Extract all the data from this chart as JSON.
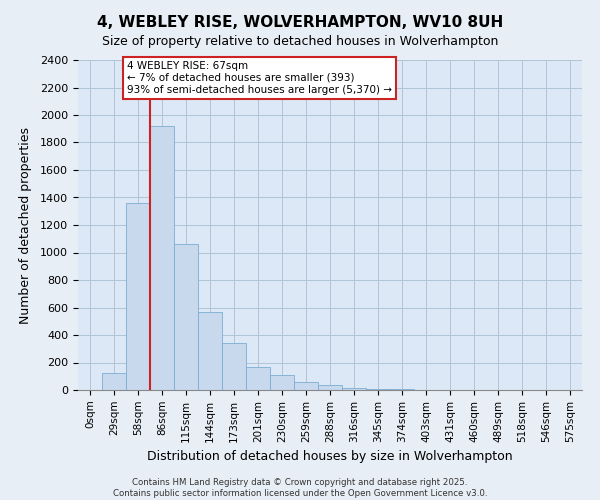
{
  "title": "4, WEBLEY RISE, WOLVERHAMPTON, WV10 8UH",
  "subtitle": "Size of property relative to detached houses in Wolverhampton",
  "xlabel": "Distribution of detached houses by size in Wolverhampton",
  "ylabel": "Number of detached properties",
  "bar_labels": [
    "0sqm",
    "29sqm",
    "58sqm",
    "86sqm",
    "115sqm",
    "144sqm",
    "173sqm",
    "201sqm",
    "230sqm",
    "259sqm",
    "288sqm",
    "316sqm",
    "345sqm",
    "374sqm",
    "403sqm",
    "431sqm",
    "460sqm",
    "489sqm",
    "518sqm",
    "546sqm",
    "575sqm"
  ],
  "bar_values": [
    0,
    125,
    1360,
    1920,
    1060,
    570,
    340,
    165,
    108,
    60,
    35,
    18,
    10,
    5,
    0,
    0,
    0,
    0,
    0,
    0,
    0
  ],
  "bar_color": "#c8d8ed",
  "bar_edge_color": "#7aadd4",
  "ylim": [
    0,
    2400
  ],
  "yticks": [
    0,
    200,
    400,
    600,
    800,
    1000,
    1200,
    1400,
    1600,
    1800,
    2000,
    2200,
    2400
  ],
  "property_line_x": 2.5,
  "property_line_label": "4 WEBLEY RISE: 67sqm",
  "annotation_line1": "← 7% of detached houses are smaller (393)",
  "annotation_line2": "93% of semi-detached houses are larger (5,370) →",
  "footer_line1": "Contains HM Land Registry data © Crown copyright and database right 2025.",
  "footer_line2": "Contains public sector information licensed under the Open Government Licence v3.0.",
  "background_color": "#e8eef5",
  "plot_background_color": "#dce8f5",
  "grid_color": "#b0c4d8",
  "line_color": "#cc2222",
  "annotation_box_color": "#ffffff",
  "annotation_box_edge": "#cc2222",
  "title_fontsize": 11,
  "subtitle_fontsize": 9,
  "xlabel_fontsize": 9,
  "ylabel_fontsize": 9,
  "tick_fontsize": 8,
  "xtick_fontsize": 7.5
}
